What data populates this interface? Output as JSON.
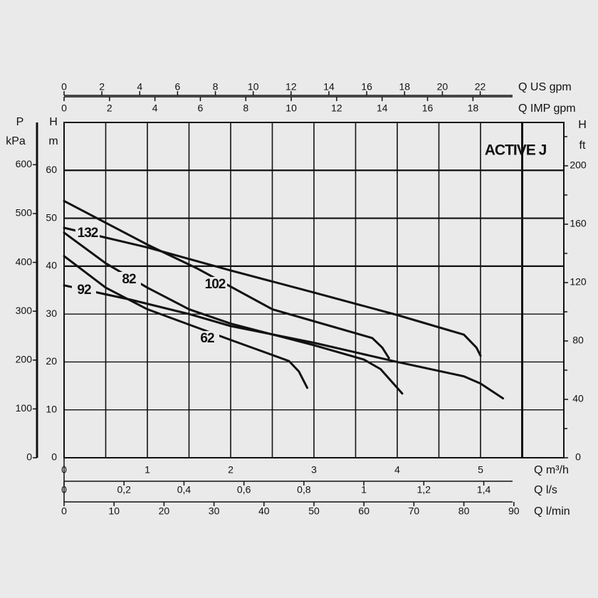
{
  "chart_data": {
    "type": "line",
    "title": "ACTIVE J",
    "x_label": "Q m³/h",
    "y_label_top": "H",
    "y_label_unit": "m",
    "xlim": [
      0,
      6
    ],
    "ylim": [
      0,
      70
    ],
    "xticks": [
      0,
      1,
      2,
      3,
      4,
      5
    ],
    "xgrid": [
      0.5,
      1,
      1.5,
      2,
      2.5,
      3,
      3.5,
      4,
      4.5,
      5,
      5.5
    ],
    "yticks": [
      0,
      10,
      20,
      30,
      40,
      50,
      60
    ],
    "grid": true,
    "series": [
      {
        "name": "132",
        "color": "#111111",
        "x": [
          0,
          1,
          2,
          3,
          4,
          4.8,
          4.95,
          5
        ],
        "values": [
          48,
          43.9,
          39.1,
          34.5,
          29.8,
          25.7,
          23,
          21.3
        ]
      },
      {
        "name": "102",
        "color": "#111111",
        "x": [
          0,
          1,
          1.6,
          2.5,
          3.2,
          3.7,
          3.82,
          3.9
        ],
        "values": [
          53.6,
          44.5,
          39.5,
          31,
          27.5,
          25,
          23,
          20.8
        ]
      },
      {
        "name": "82",
        "color": "#111111",
        "x": [
          0,
          0.5,
          1,
          1.5,
          2,
          3,
          3.6,
          3.8,
          4.06
        ],
        "values": [
          47,
          40.6,
          35.5,
          31,
          28,
          23.5,
          20.5,
          18.5,
          13.4
        ]
      },
      {
        "name": "62",
        "color": "#111111",
        "x": [
          0,
          0.5,
          1,
          2,
          2.7,
          2.82,
          2.92
        ],
        "values": [
          42.1,
          35.5,
          31,
          24.6,
          20.2,
          18,
          14.6
        ]
      },
      {
        "name": "92",
        "color": "#111111",
        "x": [
          0,
          0.8,
          1.5,
          2,
          3,
          4,
          4.8,
          5,
          5.27
        ],
        "values": [
          36,
          33,
          30,
          27.5,
          24,
          20,
          17,
          15.5,
          12.4
        ]
      }
    ],
    "axes": {
      "pressure": {
        "label_top": "P",
        "label_unit": "kPa",
        "lim": [
          0,
          686.5
        ],
        "ticks": [
          0,
          100,
          200,
          300,
          400,
          500,
          600
        ]
      },
      "feet": {
        "label_top": "H",
        "label_unit": "ft",
        "lim": [
          0,
          229.7
        ],
        "ticks": [
          0,
          40,
          80,
          120,
          160,
          200
        ],
        "minor_ticks": [
          20,
          60,
          100,
          140,
          180,
          220
        ]
      },
      "us_gpm": {
        "label": "Q US gpm",
        "lim": [
          0,
          26.42
        ],
        "ticks": [
          0,
          2,
          4,
          6,
          8,
          10,
          12,
          14,
          16,
          18,
          20,
          22
        ]
      },
      "imp_gpm": {
        "label": "Q IMP gpm",
        "lim": [
          0,
          22
        ],
        "ticks": [
          0,
          2,
          4,
          6,
          8,
          10,
          12,
          14,
          16,
          18
        ]
      },
      "l_s": {
        "label": "Q l/s",
        "lim": [
          0,
          1.667
        ],
        "ticks": [
          0,
          {
            "value": 0.2,
            "label": "0,2"
          },
          {
            "value": 0.4,
            "label": "0,4"
          },
          {
            "value": 0.6,
            "label": "0,6"
          },
          {
            "value": 0.8,
            "label": "0,8"
          },
          1,
          {
            "value": 1.2,
            "label": "1,2"
          },
          {
            "value": 1.4,
            "label": "1,4"
          }
        ]
      },
      "l_min": {
        "label": "Q l/min",
        "lim": [
          0,
          100
        ],
        "ticks": [
          0,
          10,
          20,
          30,
          40,
          50,
          60,
          70,
          80,
          90
        ]
      }
    }
  }
}
